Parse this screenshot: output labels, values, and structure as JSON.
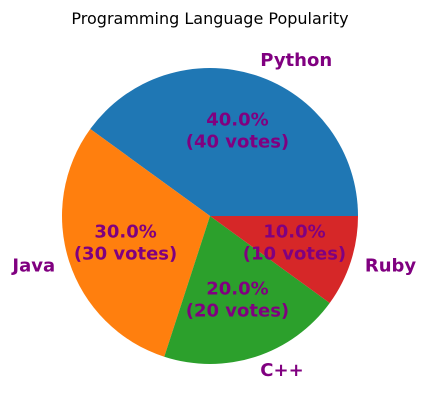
{
  "chart_data": {
    "type": "pie",
    "title": "Programming Language Popularity",
    "slices": [
      {
        "label": "Python",
        "value": 40,
        "percent_text": "40.0%",
        "votes_text": "(40 votes)",
        "color": "#1f77b4"
      },
      {
        "label": "Java",
        "value": 30,
        "percent_text": "30.0%",
        "votes_text": "(30 votes)",
        "color": "#ff7f0e"
      },
      {
        "label": "C++",
        "value": 20,
        "percent_text": "20.0%",
        "votes_text": "(20 votes)",
        "color": "#2ca02c"
      },
      {
        "label": "Ruby",
        "value": 10,
        "percent_text": "10.0%",
        "votes_text": "(10 votes)",
        "color": "#d62728"
      }
    ],
    "start_angle_deg": 0,
    "direction": "counterclockwise",
    "text_color": "#800080"
  }
}
